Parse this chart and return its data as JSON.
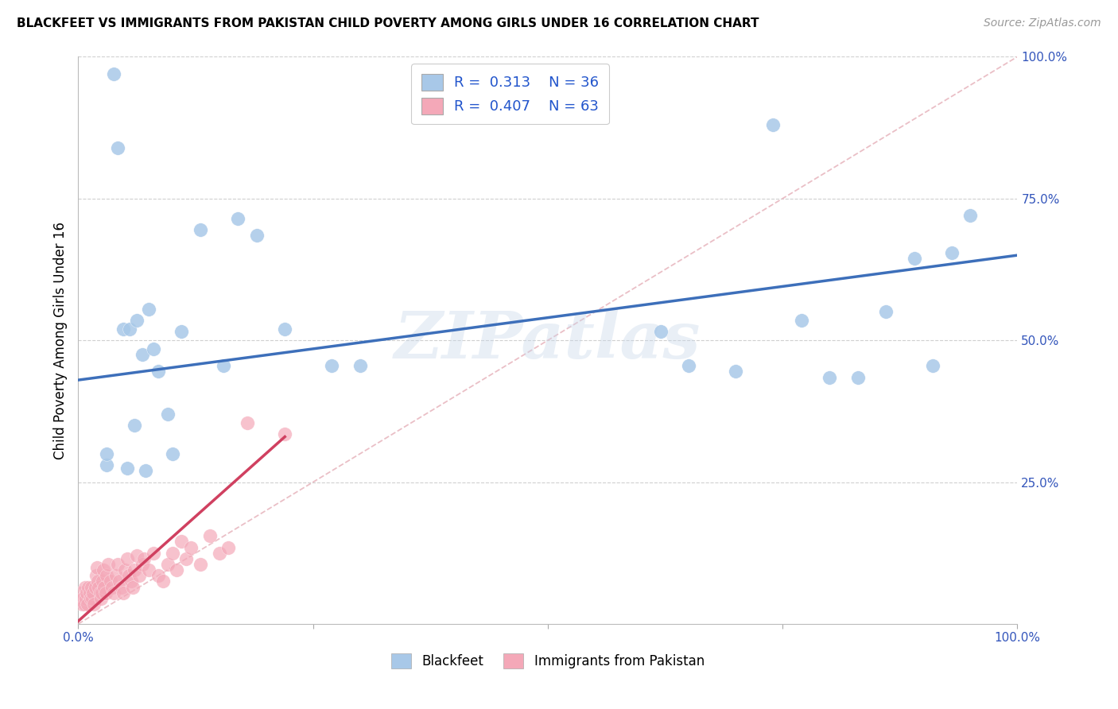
{
  "title": "BLACKFEET VS IMMIGRANTS FROM PAKISTAN CHILD POVERTY AMONG GIRLS UNDER 16 CORRELATION CHART",
  "source": "Source: ZipAtlas.com",
  "ylabel": "Child Poverty Among Girls Under 16",
  "blackfeet_R": "0.313",
  "blackfeet_N": "36",
  "pakistan_R": "0.407",
  "pakistan_N": "63",
  "blackfeet_color": "#a8c8e8",
  "pakistan_color": "#f4a8b8",
  "blackfeet_line_color": "#3d6fba",
  "pakistan_line_color": "#d04060",
  "diagonal_color": "#e8b8c0",
  "watermark": "ZIPatlas",
  "blackfeet_x": [
    0.03,
    0.03,
    0.038,
    0.042,
    0.048,
    0.052,
    0.055,
    0.06,
    0.062,
    0.068,
    0.072,
    0.075,
    0.08,
    0.085,
    0.095,
    0.1,
    0.11,
    0.13,
    0.155,
    0.17,
    0.19,
    0.22,
    0.27,
    0.3,
    0.62,
    0.65,
    0.7,
    0.74,
    0.77,
    0.8,
    0.83,
    0.86,
    0.89,
    0.91,
    0.93,
    0.95
  ],
  "blackfeet_y": [
    0.28,
    0.3,
    0.97,
    0.84,
    0.52,
    0.275,
    0.52,
    0.35,
    0.535,
    0.475,
    0.27,
    0.555,
    0.485,
    0.445,
    0.37,
    0.3,
    0.515,
    0.695,
    0.455,
    0.715,
    0.685,
    0.52,
    0.455,
    0.455,
    0.515,
    0.455,
    0.445,
    0.88,
    0.535,
    0.435,
    0.435,
    0.55,
    0.645,
    0.455,
    0.655,
    0.72
  ],
  "pakistan_x": [
    0.003,
    0.004,
    0.005,
    0.006,
    0.007,
    0.008,
    0.009,
    0.01,
    0.011,
    0.012,
    0.013,
    0.014,
    0.015,
    0.016,
    0.017,
    0.018,
    0.019,
    0.02,
    0.021,
    0.022,
    0.023,
    0.024,
    0.025,
    0.026,
    0.027,
    0.028,
    0.029,
    0.03,
    0.032,
    0.034,
    0.036,
    0.038,
    0.04,
    0.042,
    0.044,
    0.046,
    0.048,
    0.05,
    0.052,
    0.054,
    0.056,
    0.058,
    0.06,
    0.062,
    0.065,
    0.068,
    0.07,
    0.075,
    0.08,
    0.085,
    0.09,
    0.095,
    0.1,
    0.105,
    0.11,
    0.115,
    0.12,
    0.13,
    0.14,
    0.15,
    0.16,
    0.18,
    0.22
  ],
  "pakistan_y": [
    0.055,
    0.035,
    0.045,
    0.035,
    0.065,
    0.045,
    0.055,
    0.035,
    0.065,
    0.055,
    0.045,
    0.065,
    0.045,
    0.055,
    0.035,
    0.065,
    0.085,
    0.1,
    0.075,
    0.065,
    0.055,
    0.045,
    0.055,
    0.075,
    0.095,
    0.065,
    0.055,
    0.085,
    0.105,
    0.075,
    0.065,
    0.055,
    0.085,
    0.105,
    0.075,
    0.065,
    0.055,
    0.095,
    0.115,
    0.085,
    0.075,
    0.065,
    0.095,
    0.12,
    0.085,
    0.105,
    0.115,
    0.095,
    0.125,
    0.085,
    0.075,
    0.105,
    0.125,
    0.095,
    0.145,
    0.115,
    0.135,
    0.105,
    0.155,
    0.125,
    0.135,
    0.355,
    0.335
  ],
  "blackfeet_trend": [
    0.0,
    0.43,
    1.0,
    0.65
  ],
  "pakistan_trend": [
    0.0,
    0.005,
    0.22,
    0.33
  ],
  "xlim": [
    0.0,
    1.0
  ],
  "ylim": [
    0.0,
    1.0
  ],
  "ytick_positions": [
    0.25,
    0.5,
    0.75,
    1.0
  ],
  "ytick_labels": [
    "25.0%",
    "50.0%",
    "75.0%",
    "100.0%"
  ],
  "xtick_positions": [
    0.0,
    0.25,
    0.5,
    0.75,
    1.0
  ],
  "xtick_labels": [
    "0.0%",
    "",
    "",
    "",
    "100.0%"
  ],
  "grid_color": "#d0d0d0",
  "tick_color": "#3355bb",
  "title_fontsize": 11,
  "axis_label_fontsize": 12,
  "tick_fontsize": 11
}
